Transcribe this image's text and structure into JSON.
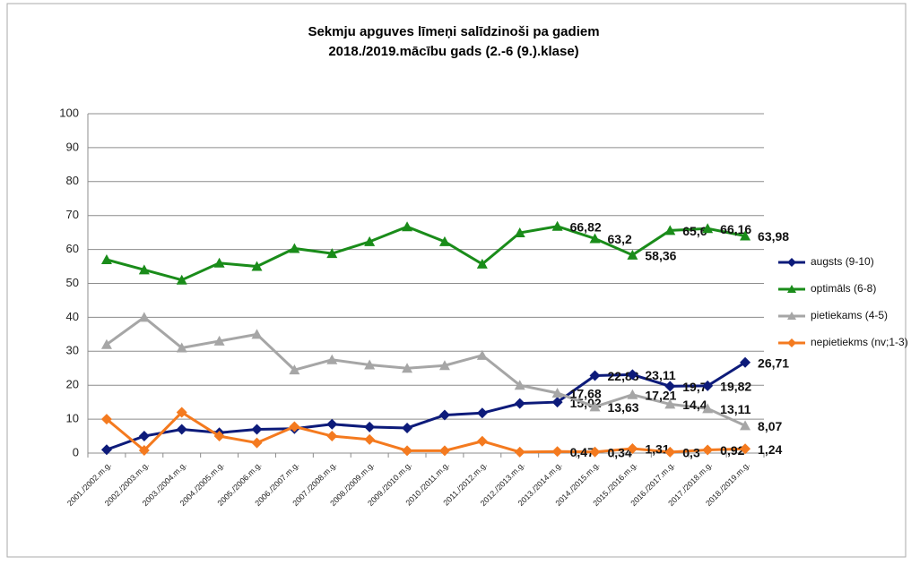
{
  "chart_data": {
    "type": "line",
    "title": "Sekmju apguves līmeņi salīdzinoši pa gadiem",
    "subtitle": "2018./2019.mācību gads (2.-6 (9.).klase)",
    "categories": [
      "2001./2002.m.g.",
      "2002./2003.m.g.",
      "2003./2004.m.g.",
      "2004./2005.m.g.",
      "2005./2006.m.g.",
      "2006./2007.m.g.",
      "2007./2008.m.g.",
      "2008./2009.m.g.",
      "2009./2010.m.g.",
      "2010./2011.m.g.",
      "2011./2012.m.g.",
      "2012./2013.m.g.",
      "2013./2014.m.g.",
      "2014./2015.m.g.",
      "2015./2016.m.g.",
      "2016./2017.m.g.",
      "2017./2018.m.g.",
      "2018./2019.m.g."
    ],
    "series": [
      {
        "name": "augsts (9-10)",
        "color": "#0d1b7a",
        "marker": "diamond",
        "values": [
          1,
          5,
          7,
          6,
          7,
          7.2,
          8.5,
          7.7,
          7.4,
          11.2,
          11.8,
          14.6,
          15.02,
          22.83,
          23.11,
          19.7,
          19.82,
          26.71
        ],
        "value_labels": [
          null,
          null,
          null,
          null,
          null,
          null,
          null,
          null,
          null,
          null,
          null,
          null,
          "15,02",
          "22,83",
          "23,11",
          "19,7",
          "19,82",
          "26,71"
        ]
      },
      {
        "name": "optimāls (6-8)",
        "color": "#1a8c1a",
        "marker": "triangle",
        "values": [
          57,
          54,
          51,
          56,
          55,
          60.3,
          58.8,
          62.3,
          66.7,
          62.3,
          55.7,
          64.9,
          66.82,
          63.2,
          58.36,
          65.6,
          66.16,
          63.98
        ],
        "value_labels": [
          null,
          null,
          null,
          null,
          null,
          null,
          null,
          null,
          null,
          null,
          null,
          null,
          "66,82",
          "63,2",
          "58,36",
          "65,6",
          "66,16",
          "63,98"
        ]
      },
      {
        "name": "pietiekams (4-5)",
        "color": "#a6a6a6",
        "marker": "triangle",
        "values": [
          32,
          40,
          31,
          33,
          35,
          24.5,
          27.5,
          26,
          25,
          25.8,
          28.8,
          20,
          17.68,
          13.63,
          17.21,
          14.4,
          13.11,
          8.07
        ],
        "value_labels": [
          null,
          null,
          null,
          null,
          null,
          null,
          null,
          null,
          null,
          null,
          null,
          null,
          "17,68",
          "13,63",
          "17,21",
          "14,4",
          "13,11",
          "8,07"
        ]
      },
      {
        "name": "nepietiekms (nv;1-3)",
        "color": "#f47a1f",
        "marker": "diamond",
        "values": [
          10,
          0.8,
          12,
          5,
          3,
          7.8,
          5,
          4,
          0.7,
          0.7,
          3.5,
          0.3,
          0.47,
          0.34,
          1.31,
          0.3,
          0.92,
          1.24
        ],
        "value_labels": [
          null,
          null,
          null,
          null,
          null,
          null,
          null,
          null,
          null,
          null,
          null,
          null,
          "0,47",
          "0,34",
          "1,31",
          "0,3",
          "0,92",
          "1,24"
        ]
      }
    ],
    "ylim": [
      0,
      100
    ],
    "yticks": [
      0,
      10,
      20,
      30,
      40,
      50,
      60,
      70,
      80,
      90,
      100
    ],
    "grid": true,
    "legend": "right"
  }
}
